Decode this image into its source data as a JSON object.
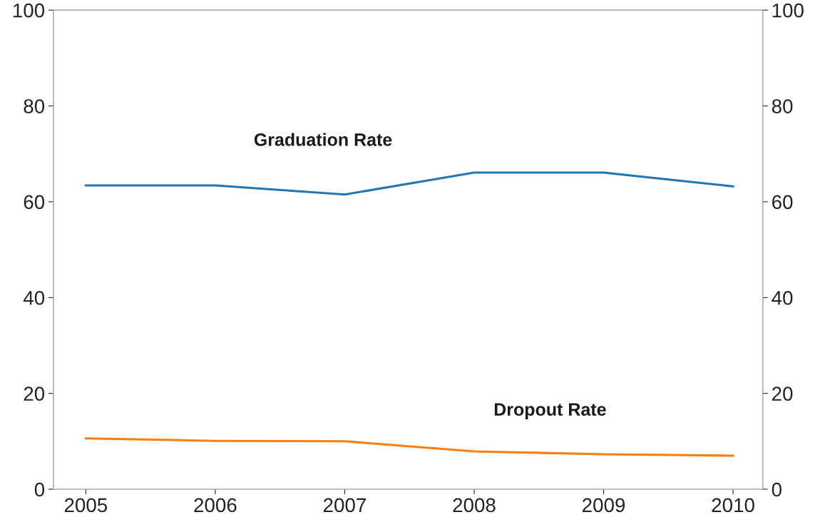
{
  "chart_data": {
    "type": "line",
    "x": [
      2005,
      2006,
      2007,
      2008,
      2009,
      2010
    ],
    "series": [
      {
        "name": "Graduation Rate",
        "color": "#1f77b4",
        "values": [
          63.4,
          63.4,
          61.5,
          66.1,
          66.1,
          63.2
        ]
      },
      {
        "name": "Dropout Rate",
        "color": "#ff7f0e",
        "values": [
          10.6,
          10.1,
          10.0,
          7.9,
          7.3,
          7.0
        ]
      }
    ],
    "xlim": [
      2004.75,
      2010.23
    ],
    "xticks": [
      2005,
      2006,
      2007,
      2008,
      2009,
      2010
    ],
    "ylim": [
      0,
      100
    ],
    "yticks": [
      0,
      20,
      40,
      60,
      80,
      100
    ],
    "y2lim": [
      0,
      100
    ],
    "y2ticks": [
      0,
      20,
      40,
      60,
      80,
      100
    ],
    "grid": false,
    "legend": false,
    "marker": "none",
    "line_style": "solid"
  }
}
